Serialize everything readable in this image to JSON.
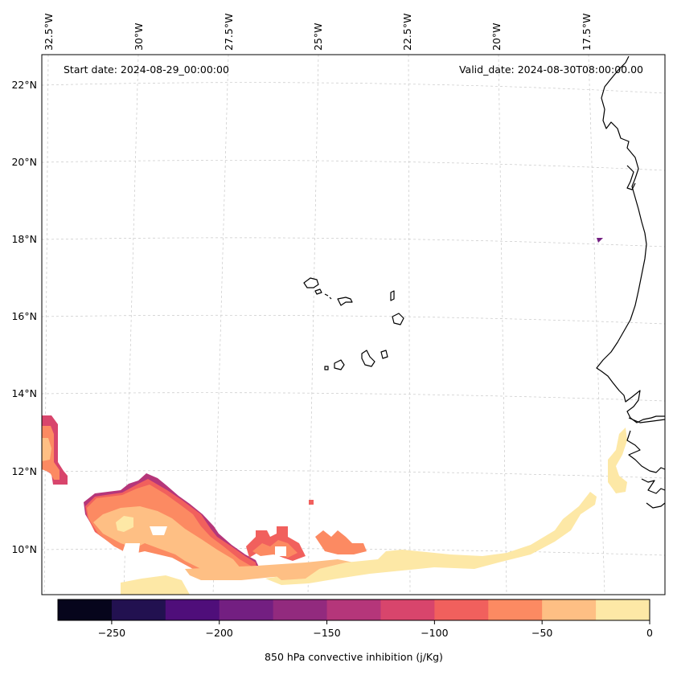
{
  "map": {
    "start_label": "Start date: 2024-08-29_00:00:00",
    "valid_label": "Valid_date: 2024-08-30T08:00:00.00",
    "lon_ticks": [
      "32.5°W",
      "30°W",
      "27.5°W",
      "25°W",
      "22.5°W",
      "20°W",
      "17.5°W"
    ],
    "lat_ticks": [
      "22°N",
      "20°N",
      "18°N",
      "16°N",
      "14°N",
      "12°N",
      "10°N"
    ],
    "extent": {
      "lon_min": -32.6,
      "lon_max": -14.9,
      "lat_min": 8.9,
      "lat_max": 22.7
    },
    "gridlines": true
  },
  "colorbar": {
    "label": "850 hPa convective inhibition (j/Kg)",
    "tick_labels": [
      "−250",
      "−200",
      "−150",
      "−100",
      "−50",
      "0"
    ],
    "tick_values": [
      -250,
      -200,
      -150,
      -100,
      -50,
      0
    ],
    "range": [
      -275,
      0
    ],
    "levels": [
      -275,
      -250,
      -225,
      -200,
      -175,
      -150,
      -125,
      -100,
      -75,
      -50,
      -25,
      0
    ],
    "colors": [
      "#06051c",
      "#221150",
      "#4f0e7a",
      "#731f81",
      "#922a7e",
      "#b5367a",
      "#d8456c",
      "#f1605d",
      "#fc8a62",
      "#febf84",
      "#fde8a6"
    ]
  },
  "chart_data": {
    "type": "heatmap",
    "variable": "850 hPa convective inhibition (j/Kg)",
    "extent": {
      "lon_min": -32.6,
      "lon_max": -14.9,
      "lat_min": 8.9,
      "lat_max": 22.7
    },
    "regions": [
      {
        "area": "westernmost edge near 32.5°W, 12–13.5°N",
        "level_range": [
          -100,
          -25
        ]
      },
      {
        "area": "band 31.5°W–26°W, 9.5–11.8°N",
        "level_range": [
          -150,
          -25
        ]
      },
      {
        "area": "southern band 27.5°W–18.5°W, 9–10.5°N",
        "level_range": [
          -100,
          0
        ]
      },
      {
        "area": "strip along coast 18.5°W–17°W, 10–12.5°N",
        "level_range": [
          -25,
          0
        ]
      },
      {
        "area": "isolated cell near 17.2°W, 18°N",
        "level_range": [
          -200,
          -175
        ]
      }
    ]
  }
}
